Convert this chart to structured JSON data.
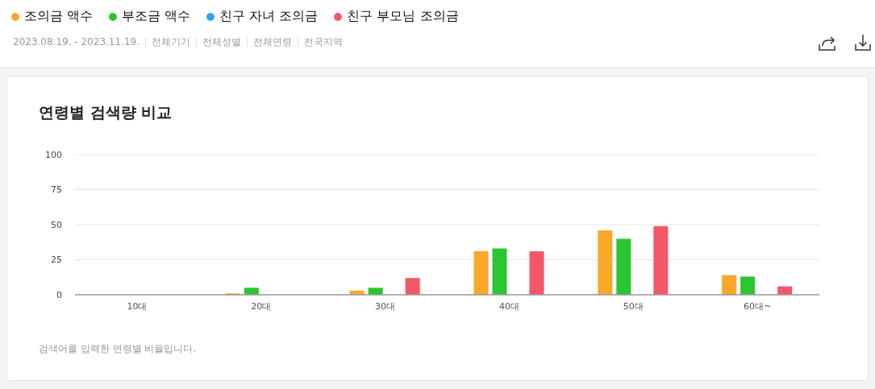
{
  "chart_data": {
    "type": "bar",
    "title": "연령별 검색량 비교",
    "subtitle": "2023.08.19. - 2023.11.19.",
    "annotations": [
      "전체기기",
      "전체성별",
      "전체연령",
      "전국지역",
      "검색어를 입력한 연령별 비율입니다."
    ],
    "categories": [
      "10대",
      "20대",
      "30대",
      "40대",
      "50대",
      "60대~"
    ],
    "series": [
      {
        "name": "조의금 액수",
        "color": "#fba72b",
        "values": [
          0,
          1,
          3,
          31,
          46,
          14
        ]
      },
      {
        "name": "부조금 액수",
        "color": "#2ac631",
        "values": [
          0,
          5,
          5,
          33,
          40,
          13
        ]
      },
      {
        "name": "친구 자녀 조의금",
        "color": "#2fa5f4",
        "values": [
          0,
          0,
          0,
          0,
          0,
          0
        ]
      },
      {
        "name": "친구 부모님 조의금",
        "color": "#f25867",
        "values": [
          0,
          0,
          12,
          31,
          49,
          6
        ]
      }
    ],
    "ylim": [
      0,
      100
    ],
    "yticks": [
      0,
      25,
      50,
      75,
      100
    ],
    "grid": "y",
    "legend": "top left"
  }
}
